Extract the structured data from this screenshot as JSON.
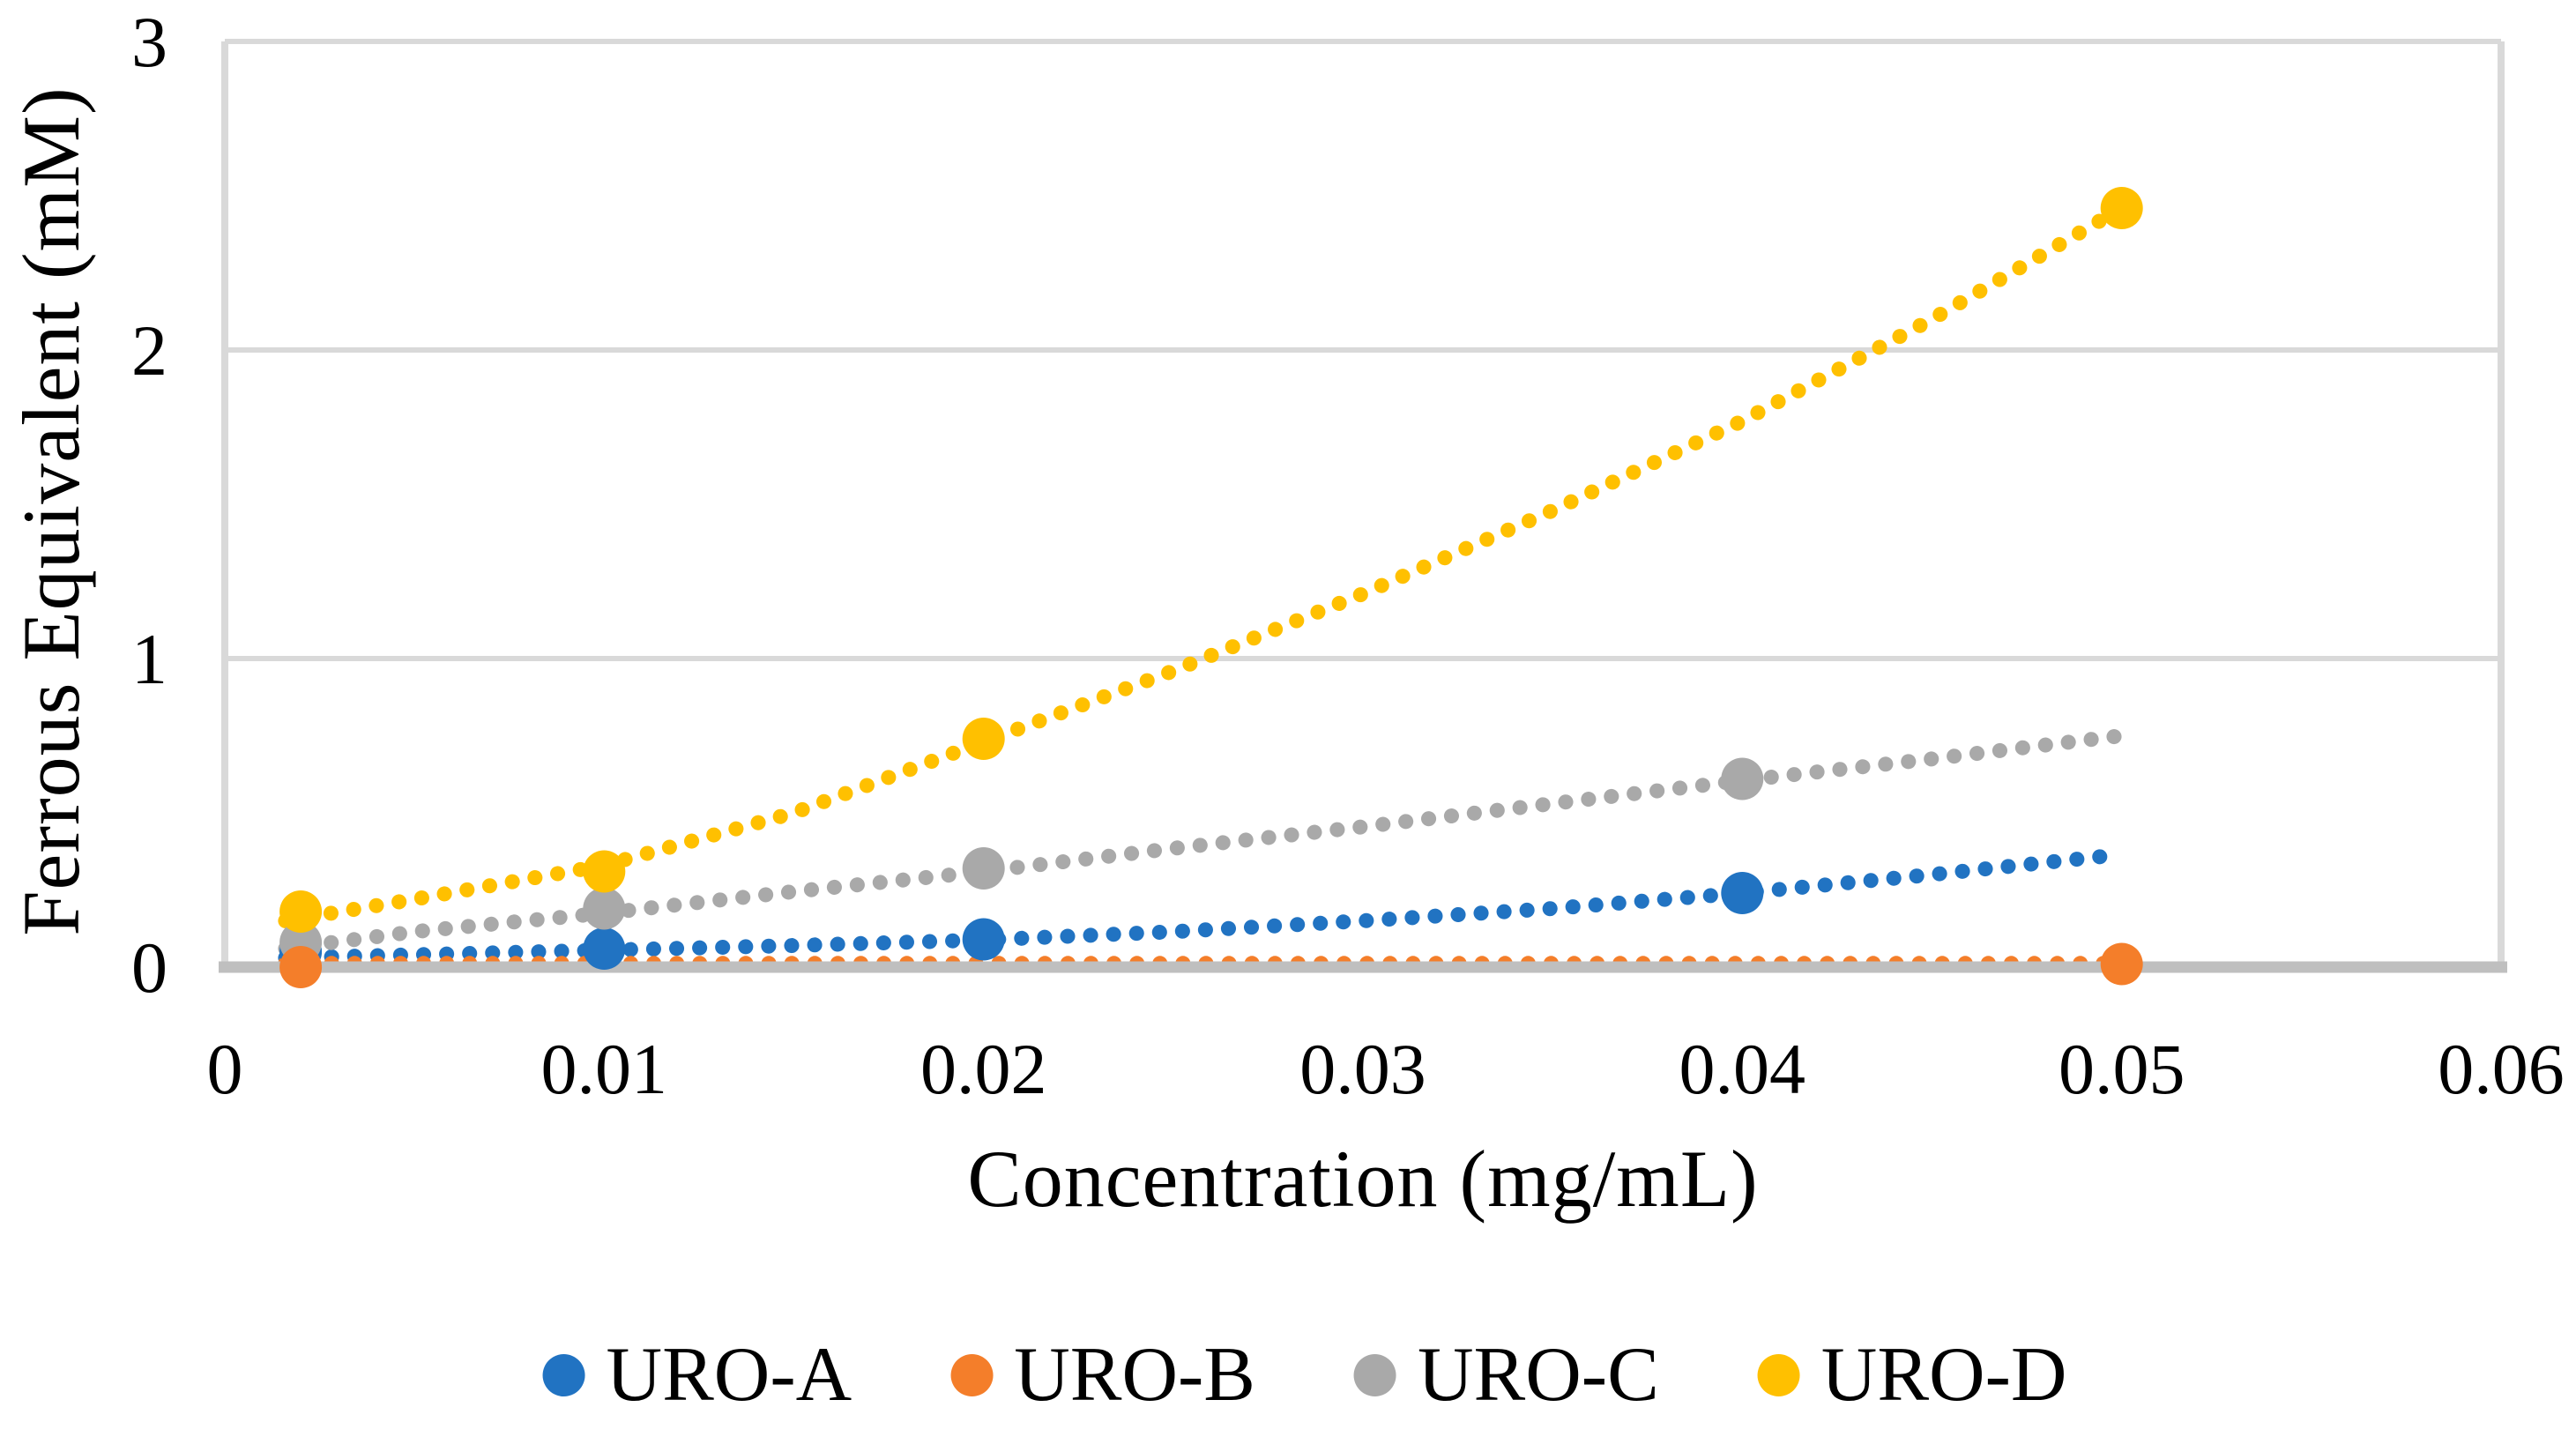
{
  "chart_data": {
    "type": "scatter",
    "title": "",
    "xlabel": "Concentration (mg/mL)",
    "ylabel": "Ferrous Equivalent (mM)",
    "xlim": [
      0,
      0.06
    ],
    "ylim": [
      0,
      3
    ],
    "x_tick_labels": [
      "0",
      "0.01",
      "0.02",
      "0.03",
      "0.04",
      "0.05",
      "0.06"
    ],
    "x_tick_values": [
      0,
      0.01,
      0.02,
      0.03,
      0.04,
      0.05,
      0.06
    ],
    "y_tick_labels": [
      "0",
      "1",
      "2",
      "3"
    ],
    "y_tick_values": [
      0,
      1,
      2,
      3
    ],
    "grid": "horizontal",
    "legend_position": "bottom",
    "colors": {
      "grid": "#d9d9d9",
      "axis": "#bfbfbf",
      "border": "#d9d9d9"
    },
    "series": [
      {
        "name": "URO-A",
        "color": "#2173c2",
        "marker_style": "dot",
        "line_style": "dotted-trend",
        "points": [
          [
            0.002,
            0.05
          ],
          [
            0.01,
            0.06
          ],
          [
            0.02,
            0.09
          ],
          [
            0.04,
            0.24
          ]
        ],
        "trend": [
          [
            0.0016,
            0.03
          ],
          [
            0.005,
            0.04
          ],
          [
            0.01,
            0.055
          ],
          [
            0.015,
            0.07
          ],
          [
            0.02,
            0.088
          ],
          [
            0.025,
            0.115
          ],
          [
            0.03,
            0.15
          ],
          [
            0.035,
            0.19
          ],
          [
            0.04,
            0.24
          ],
          [
            0.045,
            0.3
          ],
          [
            0.0496,
            0.36
          ]
        ]
      },
      {
        "name": "URO-B",
        "color": "#f47e2a",
        "marker_style": "dot",
        "line_style": "dotted-trend",
        "points": [
          [
            0.002,
            0.0
          ],
          [
            0.05,
            0.01
          ]
        ],
        "trend": [
          [
            0.0016,
            0.012
          ],
          [
            0.0497,
            0.012
          ]
        ]
      },
      {
        "name": "URO-C",
        "color": "#a9a9a9",
        "marker_style": "dot",
        "line_style": "dotted-trend",
        "points": [
          [
            0.002,
            0.08
          ],
          [
            0.01,
            0.19
          ],
          [
            0.02,
            0.32
          ],
          [
            0.04,
            0.61
          ]
        ],
        "trend": [
          [
            0.0016,
            0.06
          ],
          [
            0.005,
            0.115
          ],
          [
            0.01,
            0.175
          ],
          [
            0.015,
            0.245
          ],
          [
            0.02,
            0.31
          ],
          [
            0.025,
            0.385
          ],
          [
            0.03,
            0.455
          ],
          [
            0.035,
            0.53
          ],
          [
            0.04,
            0.605
          ],
          [
            0.045,
            0.675
          ],
          [
            0.05,
            0.75
          ]
        ]
      },
      {
        "name": "URO-D",
        "color": "#ffc000",
        "marker_style": "dot",
        "line_style": "dotted-trend",
        "points": [
          [
            0.002,
            0.18
          ],
          [
            0.01,
            0.31
          ],
          [
            0.02,
            0.74
          ],
          [
            0.05,
            2.46
          ]
        ],
        "trend": [
          [
            0.0016,
            0.15
          ],
          [
            0.005,
            0.22
          ],
          [
            0.01,
            0.33
          ],
          [
            0.015,
            0.5
          ],
          [
            0.02,
            0.73
          ],
          [
            0.025,
            0.96
          ],
          [
            0.03,
            1.21
          ],
          [
            0.035,
            1.48
          ],
          [
            0.04,
            1.77
          ],
          [
            0.045,
            2.1
          ],
          [
            0.05,
            2.46
          ]
        ]
      }
    ]
  }
}
